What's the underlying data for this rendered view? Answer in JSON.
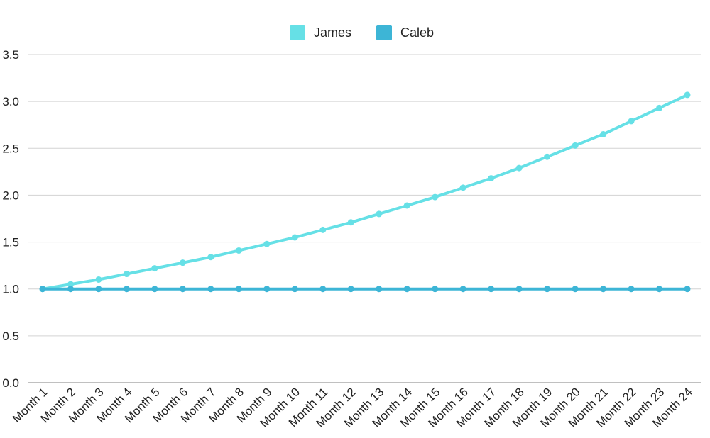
{
  "chart_data": {
    "type": "line",
    "title": "",
    "xlabel": "",
    "ylabel": "",
    "categories": [
      "Month 1",
      "Month 2",
      "Month 3",
      "Month 4",
      "Month 5",
      "Month 6",
      "Month 7",
      "Month 8",
      "Month 9",
      "Month 10",
      "Month 11",
      "Month 12",
      "Month 13",
      "Month 14",
      "Month 15",
      "Month 16",
      "Month 17",
      "Month 18",
      "Month 19",
      "Month 20",
      "Month 21",
      "Month 22",
      "Month 23",
      "Month 24"
    ],
    "ylim": [
      0,
      3.5
    ],
    "yticks": [
      "0.0",
      "0.5",
      "1.0",
      "1.5",
      "2.0",
      "2.5",
      "3.0",
      "3.5"
    ],
    "grid": true,
    "legend": "top-center",
    "series": [
      {
        "name": "James",
        "color": "#66e0e6",
        "values": [
          1.0,
          1.05,
          1.1,
          1.16,
          1.22,
          1.28,
          1.34,
          1.41,
          1.48,
          1.55,
          1.63,
          1.71,
          1.8,
          1.89,
          1.98,
          2.08,
          2.18,
          2.29,
          2.41,
          2.53,
          2.65,
          2.79,
          2.93,
          3.07
        ]
      },
      {
        "name": "Caleb",
        "color": "#3db5d6",
        "values": [
          1.0,
          1.0,
          1.0,
          1.0,
          1.0,
          1.0,
          1.0,
          1.0,
          1.0,
          1.0,
          1.0,
          1.0,
          1.0,
          1.0,
          1.0,
          1.0,
          1.0,
          1.0,
          1.0,
          1.0,
          1.0,
          1.0,
          1.0,
          1.0
        ]
      }
    ]
  }
}
